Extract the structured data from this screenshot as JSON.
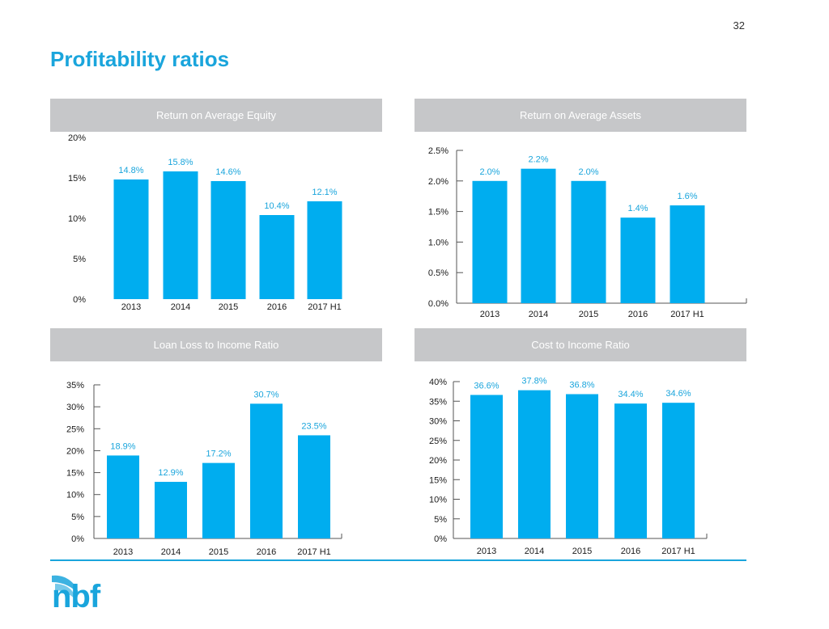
{
  "page": {
    "number": "32",
    "title": "Profitability ratios"
  },
  "colors": {
    "accent": "#1aa5dc",
    "bar": "#00adef",
    "header_bg": "#c6c7c9",
    "header_text": "#ffffff"
  },
  "logo": {
    "text": "nbf",
    "icon": "nbf-wave-logo-icon"
  },
  "chart_data": [
    {
      "type": "bar",
      "title": "Return on Average Equity",
      "categories": [
        "2013",
        "2014",
        "2015",
        "2016",
        "2017 H1"
      ],
      "values": [
        14.8,
        15.8,
        14.6,
        10.4,
        12.1
      ],
      "value_labels": [
        "14.8%",
        "15.8%",
        "14.6%",
        "10.4%",
        "12.1%"
      ],
      "y_ticks": [
        "0%",
        "5%",
        "10%",
        "15%",
        "20%"
      ],
      "ylim": [
        0,
        20
      ],
      "grid": false
    },
    {
      "type": "bar",
      "title": "Return on Average Assets",
      "categories": [
        "2013",
        "2014",
        "2015",
        "2016",
        "2017 H1"
      ],
      "values": [
        2.0,
        2.2,
        2.0,
        1.4,
        1.6
      ],
      "value_labels": [
        "2.0%",
        "2.2%",
        "2.0%",
        "1.4%",
        "1.6%"
      ],
      "y_ticks": [
        "0.0%",
        "0.5%",
        "1.0%",
        "1.5%",
        "2.0%",
        "2.5%"
      ],
      "ylim": [
        0,
        2.5
      ],
      "grid": false
    },
    {
      "type": "bar",
      "title": "Loan Loss to Income Ratio",
      "categories": [
        "2013",
        "2014",
        "2015",
        "2016",
        "2017 H1"
      ],
      "values": [
        18.9,
        12.9,
        17.2,
        30.7,
        23.5
      ],
      "value_labels": [
        "18.9%",
        "12.9%",
        "17.2%",
        "30.7%",
        "23.5%"
      ],
      "y_ticks": [
        "0%",
        "5%",
        "10%",
        "15%",
        "20%",
        "25%",
        "30%",
        "35%"
      ],
      "ylim": [
        0,
        35
      ],
      "grid": false
    },
    {
      "type": "bar",
      "title": "Cost to Income Ratio",
      "categories": [
        "2013",
        "2014",
        "2015",
        "2016",
        "2017 H1"
      ],
      "values": [
        36.6,
        37.8,
        36.8,
        34.4,
        34.6
      ],
      "value_labels": [
        "36.6%",
        "37.8%",
        "36.8%",
        "34.4%",
        "34.6%"
      ],
      "y_ticks": [
        "0%",
        "5%",
        "10%",
        "15%",
        "20%",
        "25%",
        "30%",
        "35%",
        "40%"
      ],
      "ylim": [
        0,
        40
      ],
      "grid": false
    }
  ]
}
